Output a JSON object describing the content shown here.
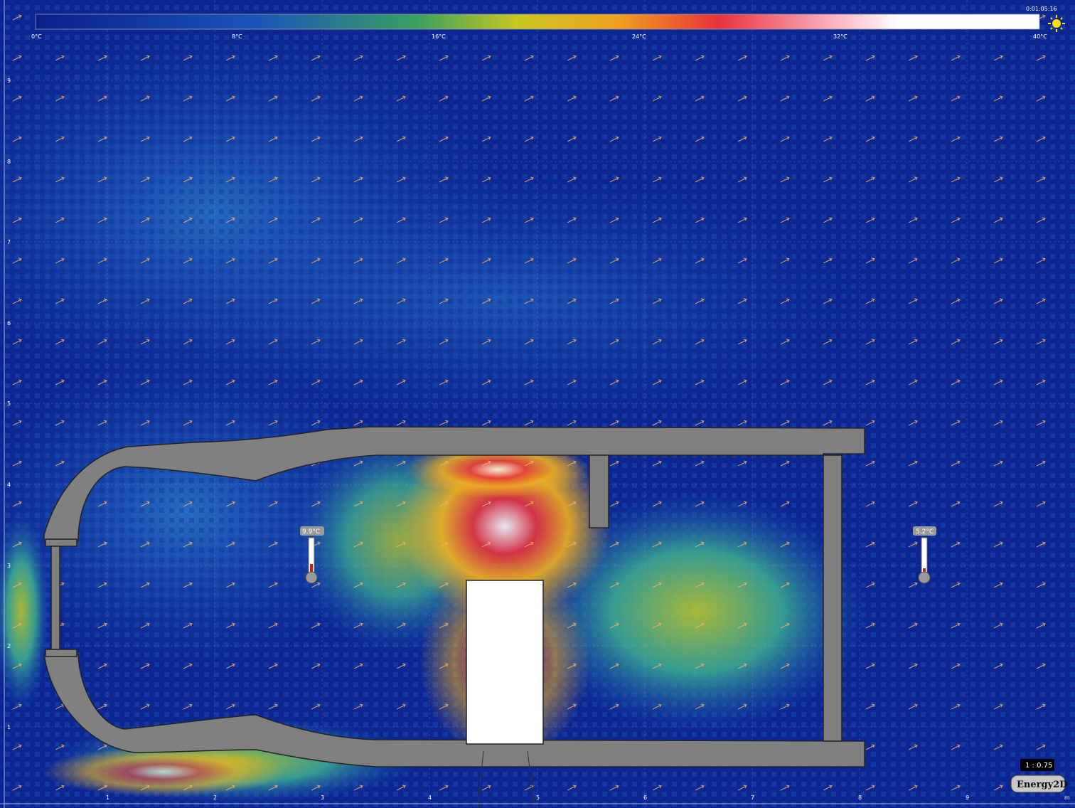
{
  "clock": "0:01:05:16",
  "scale": {
    "min": 0,
    "max": 40,
    "labels": [
      "0°C",
      "8°C",
      "16°C",
      "24°C",
      "32°C",
      "40°C"
    ]
  },
  "thermometers": [
    {
      "reading": "9.9°C",
      "level": 0.25
    },
    {
      "reading": "5.2°C",
      "level": 0.13
    }
  ],
  "ruler": {
    "x_ticks": [
      "1",
      "2",
      "3",
      "4",
      "5",
      "6",
      "7",
      "8",
      "9"
    ],
    "y_ticks": [
      "1",
      "2",
      "3",
      "4",
      "5",
      "6",
      "7",
      "8",
      "9"
    ],
    "unit": "m"
  },
  "zoom": "1 : 0.75",
  "brand": "Energy2D",
  "colors": {
    "cold": "#0a1f8a",
    "wall": "#808080",
    "heater": "#ffffff",
    "hot": "#e8323c"
  },
  "icons": {
    "sun": "sun-icon"
  }
}
